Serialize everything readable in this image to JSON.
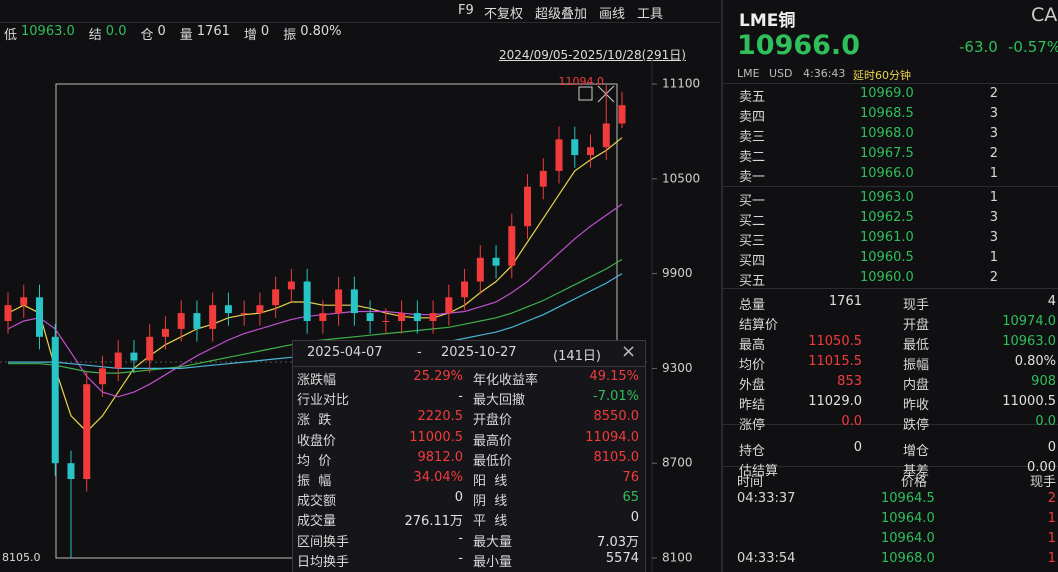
{
  "toolbar": [
    "F9",
    "不复权",
    "超级叠加",
    "画线",
    "工具"
  ],
  "info": [
    {
      "label": "低",
      "value": "10963.0",
      "color": "#2fbf5b"
    },
    {
      "label": "结",
      "value": "0.0",
      "color": "#2fbf5b"
    },
    {
      "label": "仓",
      "value": "0"
    },
    {
      "label": "量",
      "value": "1761"
    },
    {
      "label": "增",
      "value": "0"
    },
    {
      "label": "振",
      "value": "0.80%"
    }
  ],
  "date_range": "2024/09/05-2025/10/28(291日)",
  "chart_data": {
    "type": "candlestick",
    "ylim": [
      8100,
      11100
    ],
    "yticks": [
      8100,
      8700,
      9300,
      9900,
      10500,
      11100
    ],
    "up_color": "#f23b3b",
    "down_color": "#27c5c5",
    "annotations": [
      "11094.0",
      "8105.0"
    ],
    "open": [
      9600,
      9700,
      9750,
      9500,
      8700,
      8600,
      9200,
      9300,
      9400,
      9350,
      9500,
      9550,
      9650,
      9550,
      9700,
      9650,
      9650,
      9700,
      9800,
      9850,
      9600,
      9650,
      9800,
      9650,
      9600,
      9600,
      9650,
      9600,
      9650,
      9750,
      9850,
      10000,
      9950,
      10200,
      10450,
      10550,
      10750,
      10650,
      10700,
      10850
    ],
    "high": [
      9780,
      9830,
      9830,
      9580,
      8780,
      9280,
      9380,
      9480,
      9480,
      9580,
      9630,
      9730,
      9730,
      9780,
      9780,
      9730,
      9780,
      9880,
      9930,
      9930,
      9730,
      9880,
      9880,
      9730,
      9680,
      9730,
      9730,
      9730,
      9830,
      9930,
      10080,
      10080,
      10280,
      10530,
      10630,
      10830,
      10830,
      10780,
      11094,
      11050
    ],
    "low": [
      9520,
      9620,
      9420,
      8620,
      8105,
      8520,
      9120,
      9220,
      9270,
      9270,
      9420,
      9470,
      9470,
      9470,
      9570,
      9570,
      9570,
      9620,
      9720,
      9520,
      9520,
      9570,
      9570,
      9520,
      9520,
      9520,
      9520,
      9520,
      9570,
      9670,
      9770,
      9870,
      9870,
      10120,
      10370,
      10470,
      10570,
      10570,
      10620,
      10820
    ],
    "close": [
      9700,
      9750,
      9500,
      8700,
      8600,
      9200,
      9300,
      9400,
      9350,
      9500,
      9550,
      9650,
      9550,
      9700,
      9650,
      9650,
      9700,
      9800,
      9850,
      9600,
      9650,
      9800,
      9650,
      9600,
      9600,
      9650,
      9600,
      9650,
      9750,
      9850,
      10000,
      9950,
      10200,
      10450,
      10550,
      10750,
      10650,
      10700,
      10850,
      10966
    ],
    "lines": [
      {
        "color": "#e8d44d",
        "values": [
          9650,
          9700,
          9650,
          9300,
          9000,
          8900,
          9000,
          9150,
          9300,
          9380,
          9450,
          9500,
          9550,
          9580,
          9620,
          9640,
          9650,
          9680,
          9720,
          9720,
          9700,
          9700,
          9700,
          9680,
          9650,
          9630,
          9620,
          9620,
          9650,
          9700,
          9780,
          9850,
          9950,
          10100,
          10250,
          10400,
          10550,
          10620,
          10680,
          10760
        ]
      },
      {
        "color": "#c050d0",
        "values": [
          9550,
          9600,
          9620,
          9550,
          9400,
          9250,
          9150,
          9120,
          9150,
          9200,
          9260,
          9320,
          9380,
          9430,
          9480,
          9520,
          9550,
          9580,
          9610,
          9630,
          9640,
          9650,
          9660,
          9660,
          9660,
          9650,
          9640,
          9640,
          9650,
          9660,
          9690,
          9720,
          9780,
          9850,
          9940,
          10030,
          10120,
          10200,
          10270,
          10340
        ]
      },
      {
        "color": "#3fb04a",
        "values": [
          9330,
          9330,
          9330,
          9320,
          9300,
          9280,
          9270,
          9270,
          9280,
          9290,
          9300,
          9310,
          9330,
          9350,
          9370,
          9390,
          9410,
          9430,
          9450,
          9470,
          9480,
          9490,
          9500,
          9510,
          9520,
          9530,
          9540,
          9550,
          9560,
          9580,
          9600,
          9620,
          9650,
          9690,
          9730,
          9780,
          9830,
          9880,
          9930,
          9990
        ]
      },
      {
        "color": "#4ab6d8",
        "values": [
          9340,
          9340,
          9340,
          9340,
          9330,
          9320,
          9310,
          9300,
          9300,
          9300,
          9300,
          9300,
          9310,
          9320,
          9330,
          9340,
          9350,
          9360,
          9370,
          9380,
          9390,
          9400,
          9410,
          9420,
          9430,
          9440,
          9450,
          9460,
          9470,
          9490,
          9510,
          9530,
          9560,
          9600,
          9640,
          9690,
          9740,
          9790,
          9840,
          9900
        ]
      }
    ]
  },
  "stats_popup": {
    "start": "2025-04-07",
    "sep": "-",
    "end": "2025-10-27",
    "days": "(141日)",
    "rows": [
      [
        {
          "label": "涨跌幅",
          "value": "25.29%",
          "color": "#f23b3b"
        },
        {
          "label": "年化收益率",
          "value": "49.15%",
          "color": "#f23b3b"
        }
      ],
      [
        {
          "label": "行业对比",
          "value": "-"
        },
        {
          "label": "最大回撤",
          "value": "-7.01%",
          "color": "#2fbf5b"
        }
      ],
      [
        {
          "label": "涨  跌",
          "value": "2220.5",
          "color": "#f23b3b"
        },
        {
          "label": "开盘价",
          "value": "8550.0",
          "color": "#f23b3b"
        }
      ],
      [
        {
          "label": "收盘价",
          "value": "11000.5",
          "color": "#f23b3b"
        },
        {
          "label": "最高价",
          "value": "11094.0",
          "color": "#f23b3b"
        }
      ],
      [
        {
          "label": "均  价",
          "value": "9812.0",
          "color": "#f23b3b"
        },
        {
          "label": "最低价",
          "value": "8105.0",
          "color": "#f23b3b"
        }
      ],
      [
        {
          "label": "振  幅",
          "value": "34.04%",
          "color": "#f23b3b"
        },
        {
          "label": "阳  线",
          "value": "76",
          "color": "#f23b3b"
        }
      ],
      [
        {
          "label": "成交额",
          "value": "0"
        },
        {
          "label": "阴  线",
          "value": "65",
          "color": "#2fbf5b"
        }
      ],
      [
        {
          "label": "成交量",
          "value": "276.11万"
        },
        {
          "label": "平  线",
          "value": "0"
        }
      ],
      [
        {
          "label": "区间换手",
          "value": "-"
        },
        {
          "label": "最大量",
          "value": "7.03万"
        }
      ],
      [
        {
          "label": "日均换手",
          "value": "-"
        },
        {
          "label": "最小量",
          "value": "5574"
        }
      ]
    ]
  },
  "quote": {
    "name": "LME铜",
    "code": "CA",
    "price": "10966.0",
    "change": "-63.0",
    "pct": "-0.57%",
    "exchange": "LME",
    "currency": "USD",
    "time": "4:36:43",
    "delay": "延时60分钟"
  },
  "order_book": [
    {
      "label": "卖五",
      "price": "10969.0",
      "volume": "2"
    },
    {
      "label": "卖四",
      "price": "10968.5",
      "volume": "3"
    },
    {
      "label": "卖三",
      "price": "10968.0",
      "volume": "3"
    },
    {
      "label": "卖二",
      "price": "10967.5",
      "volume": "2"
    },
    {
      "label": "卖一",
      "price": "10966.0",
      "volume": "1"
    },
    {
      "label": "买一",
      "price": "10963.0",
      "volume": "1"
    },
    {
      "label": "买二",
      "price": "10962.5",
      "volume": "3"
    },
    {
      "label": "买三",
      "price": "10961.0",
      "volume": "3"
    },
    {
      "label": "买四",
      "price": "10960.5",
      "volume": "1"
    },
    {
      "label": "买五",
      "price": "10960.0",
      "volume": "2"
    }
  ],
  "stats": [
    [
      {
        "label": "总量",
        "value": "1761"
      },
      {
        "label": "现手",
        "value": "4"
      }
    ],
    [
      {
        "label": "结算价"
      },
      {
        "label": "开盘",
        "value": "10974.0",
        "color": "#2fbf5b"
      }
    ],
    [
      {
        "label": "最高",
        "value": "11050.5",
        "color": "#f23b3b"
      },
      {
        "label": "最低",
        "value": "10963.0",
        "color": "#2fbf5b"
      }
    ],
    [
      {
        "label": "均价",
        "value": "11015.5",
        "color": "#f23b3b"
      },
      {
        "label": "振幅",
        "value": "0.80%"
      }
    ],
    [
      {
        "label": "外盘",
        "value": "853",
        "color": "#f23b3b"
      },
      {
        "label": "内盘",
        "value": "908",
        "color": "#2fbf5b"
      }
    ],
    [
      {
        "label": "昨结",
        "value": "11029.0"
      },
      {
        "label": "昨收",
        "value": "11000.5"
      }
    ],
    [
      {
        "label": "涨停",
        "value": "0.0",
        "color": "#f23b3b"
      },
      {
        "label": "跌停",
        "value": "0.0",
        "color": "#2fbf5b"
      }
    ],
    [
      {
        "label": "持仓",
        "value": "0"
      },
      {
        "label": "增仓",
        "value": "0"
      }
    ],
    [
      {
        "label": "估结算"
      },
      {
        "label": "基差",
        "value": "0.00"
      }
    ]
  ],
  "trades": {
    "header": [
      "时间",
      "价格",
      "现手"
    ],
    "rows": [
      {
        "time": "04:33:37",
        "price": "10964.5",
        "volume": "2"
      },
      {
        "price": "10964.0",
        "volume": "1"
      },
      {
        "price": "10964.0",
        "volume": "1"
      },
      {
        "time": "04:33:54",
        "price": "10968.0",
        "volume": "1"
      }
    ]
  }
}
